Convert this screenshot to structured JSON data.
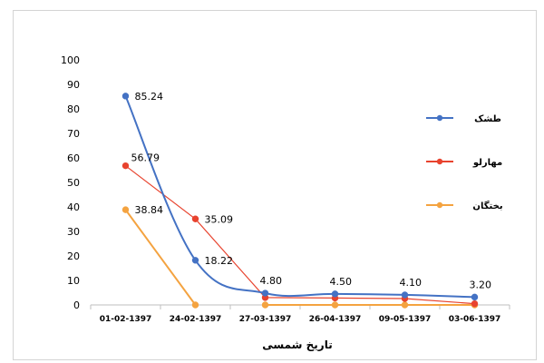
{
  "chart_data": {
    "type": "line",
    "title": "",
    "xlabel": "تاریخ شمسی",
    "ylabel": "",
    "ylim": [
      0,
      100
    ],
    "yticks": [
      0,
      10,
      20,
      30,
      40,
      50,
      60,
      70,
      80,
      90,
      100
    ],
    "categories": [
      "01-02-1397",
      "24-02-1397",
      "27-03-1397",
      "26-04-1397",
      "09-05-1397",
      "03-06-1397"
    ],
    "legend_position": "right",
    "grid": false,
    "series": [
      {
        "name": "طشک",
        "color": "#4472c4",
        "smooth": true,
        "values": [
          85.24,
          18.22,
          4.8,
          4.5,
          4.1,
          3.2
        ],
        "labels": [
          "85.24",
          "18.22",
          "4.80",
          "4.50",
          "4.10",
          "3.20"
        ]
      },
      {
        "name": "مهارلو",
        "color": "#e8432e",
        "smooth": false,
        "values": [
          56.79,
          35.09,
          3.0,
          2.8,
          2.6,
          0.5
        ],
        "labels": [
          "56.79",
          "35.09",
          "",
          "",
          "",
          ""
        ]
      },
      {
        "name": "بختگان",
        "color": "#f4a340",
        "smooth": true,
        "values": [
          38.84,
          0,
          0,
          0,
          0,
          0
        ],
        "labels": [
          "38.84",
          "",
          "",
          "",
          "",
          ""
        ],
        "segments": [
          [
            0,
            1
          ],
          [
            2,
            5
          ]
        ]
      }
    ]
  }
}
